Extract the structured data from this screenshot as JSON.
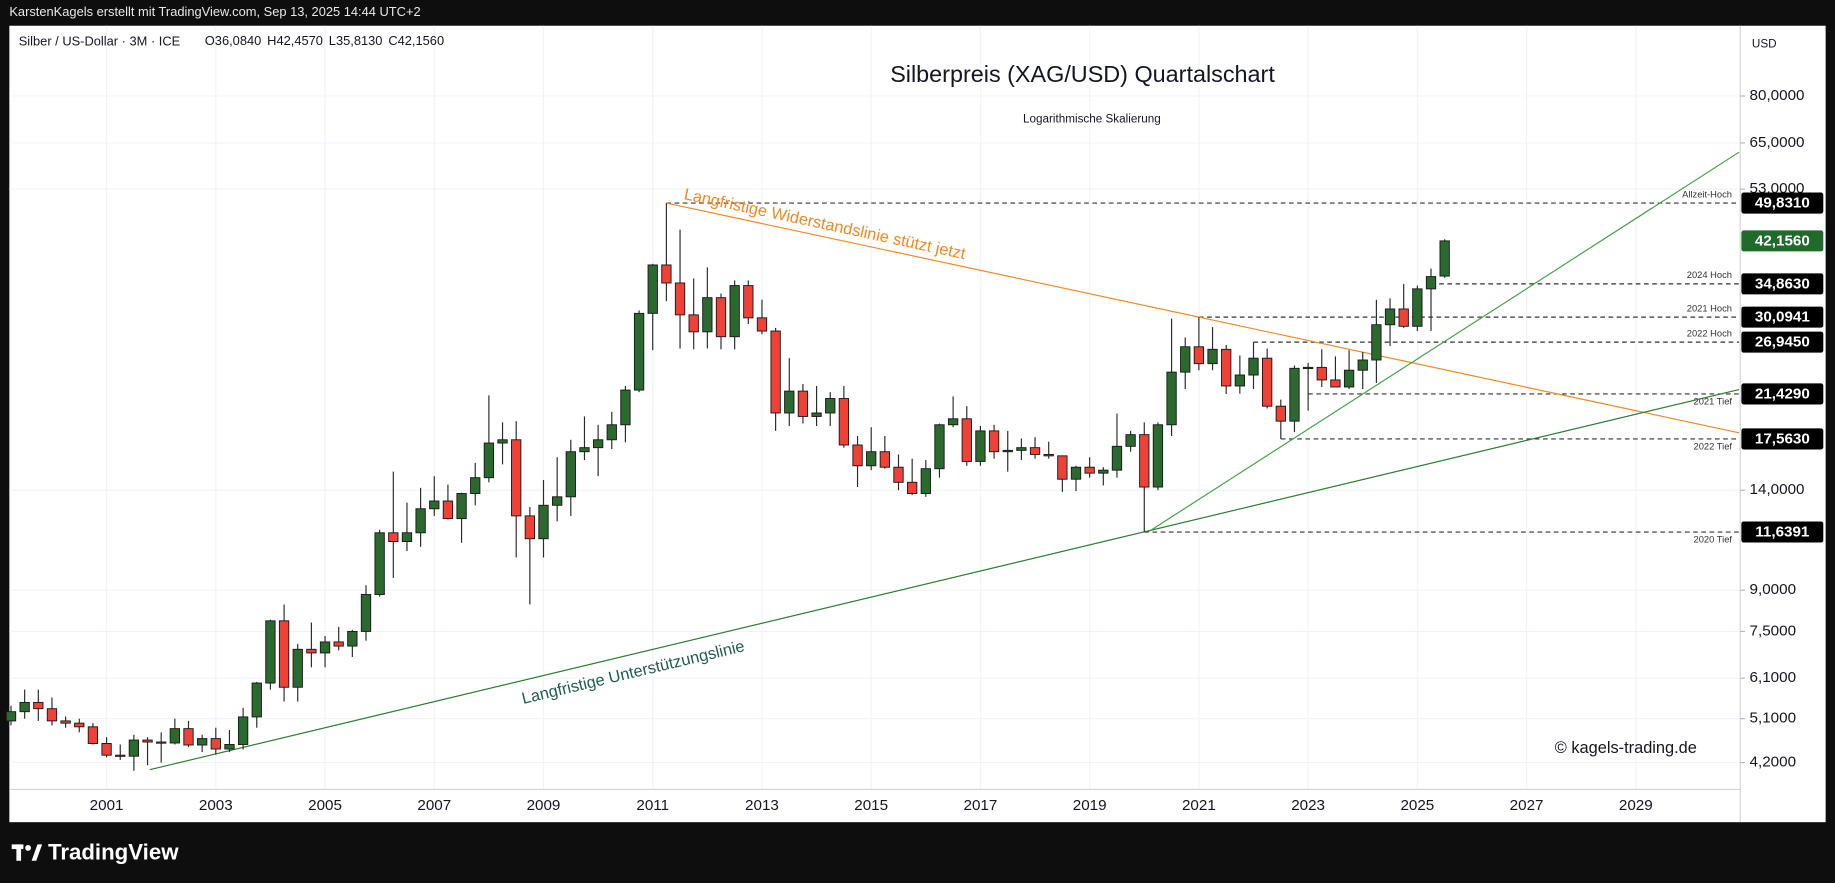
{
  "chart_data": {
    "type": "candlestick",
    "top_bar": "KarstenKagels erstellt mit TradingView.com, Sep 13, 2025 14:44 UTC+2",
    "instrument": "Silber / US-Dollar · 3M · ICE",
    "ohlc_header": [
      "O36,0840",
      "H42,4570",
      "L35,8130",
      "C42,1560"
    ],
    "title": "Silberpreis (XAG/USD) Quartalschart",
    "subtitle": "Logarithmische Skalierung",
    "y_unit": "USD",
    "watermark": "© kagels-trading.de",
    "branding": "TradingView",
    "log_scale": true,
    "grid": true,
    "up_color": "#2a6a2e",
    "down_color": "#ef4136",
    "xlim": [
      1999.22,
      2030.89
    ],
    "xticks": [
      2001,
      2003,
      2005,
      2007,
      2009,
      2011,
      2013,
      2015,
      2017,
      2019,
      2021,
      2023,
      2025,
      2027,
      2029
    ],
    "ylim": [
      3.73,
      105.8
    ],
    "yticks": [
      {
        "value": 80,
        "label": "80,0000"
      },
      {
        "value": 65,
        "label": "65,0000"
      },
      {
        "value": 53,
        "label": "53,0000"
      },
      {
        "value": 14,
        "label": "14,0000"
      },
      {
        "value": 9,
        "label": "9,0000"
      },
      {
        "value": 7.5,
        "label": "7,5000"
      },
      {
        "value": 6.1,
        "label": "6,1000"
      },
      {
        "value": 5.1,
        "label": "5,1000"
      },
      {
        "value": 4.2,
        "label": "4,2000"
      }
    ],
    "x": [
      1999.25,
      1999.5,
      1999.75,
      2000,
      2000.25,
      2000.5,
      2000.75,
      2001,
      2001.25,
      2001.5,
      2001.75,
      2002,
      2002.25,
      2002.5,
      2002.75,
      2003,
      2003.25,
      2003.5,
      2003.75,
      2004,
      2004.25,
      2004.5,
      2004.75,
      2005,
      2005.25,
      2005.5,
      2005.75,
      2006,
      2006.25,
      2006.5,
      2006.75,
      2007,
      2007.25,
      2007.5,
      2007.75,
      2008,
      2008.25,
      2008.5,
      2008.75,
      2009,
      2009.25,
      2009.5,
      2009.75,
      2010,
      2010.25,
      2010.5,
      2010.75,
      2011,
      2011.25,
      2011.5,
      2011.75,
      2012,
      2012.25,
      2012.5,
      2012.75,
      2013,
      2013.25,
      2013.5,
      2013.75,
      2014,
      2014.25,
      2014.5,
      2014.75,
      2015,
      2015.25,
      2015.5,
      2015.75,
      2016,
      2016.25,
      2016.5,
      2016.75,
      2017,
      2017.25,
      2017.5,
      2017.75,
      2018,
      2018.25,
      2018.5,
      2018.75,
      2019,
      2019.25,
      2019.5,
      2019.75,
      2020,
      2020.25,
      2020.5,
      2020.75,
      2021,
      2021.25,
      2021.5,
      2021.75,
      2022,
      2022.25,
      2022.5,
      2022.75,
      2023,
      2023.25,
      2023.5,
      2023.75,
      2024,
      2024.25,
      2024.5,
      2024.75,
      2025,
      2025.25,
      2025.5
    ],
    "open": [
      5.05,
      5.26,
      5.48,
      5.33,
      5.05,
      5.0,
      4.92,
      4.57,
      4.34,
      4.32,
      4.64,
      4.6,
      4.58,
      4.88,
      4.54,
      4.67,
      4.46,
      4.55,
      5.14,
      5.97,
      7.86,
      5.86,
      6.93,
      6.82,
      7.16,
      7.03,
      7.5,
      8.83,
      11.6,
      11.16,
      11.6,
      12.9,
      13.35,
      12.35,
      13.8,
      14.8,
      17.25,
      17.5,
      12.5,
      11.3,
      13.1,
      13.6,
      16.6,
      16.9,
      17.5,
      18.7,
      21.8,
      30.6,
      37.9,
      35.0,
      30.4,
      28.2,
      32.8,
      27.6,
      34.6,
      30.0,
      28.3,
      19.7,
      21.7,
      19.4,
      19.7,
      21.0,
      17.1,
      15.6,
      16.6,
      15.5,
      14.5,
      13.8,
      15.4,
      18.7,
      19.2,
      15.9,
      18.2,
      16.6,
      16.7,
      16.9,
      16.4,
      16.3,
      14.7,
      15.5,
      15.1,
      15.3,
      17.0,
      17.9,
      14.2,
      18.7,
      23.6,
      26.4,
      24.5,
      26.1,
      22.2,
      23.3,
      25.1,
      20.3,
      19.0,
      24.0,
      24.1,
      22.8,
      22.1,
      23.8,
      24.9,
      29.1,
      31.2,
      28.9,
      34.1,
      36.084
    ],
    "high": [
      5.4,
      5.8,
      5.8,
      5.6,
      5.15,
      5.1,
      5.0,
      4.7,
      4.55,
      4.75,
      4.7,
      4.8,
      5.1,
      5.05,
      4.75,
      4.9,
      4.85,
      5.35,
      6.0,
      7.9,
      8.45,
      7.1,
      7.8,
      7.35,
      7.65,
      7.55,
      9.2,
      11.75,
      15.2,
      13.25,
      14.15,
      14.9,
      14.35,
      13.85,
      15.8,
      21.3,
      18.9,
      19.0,
      13.0,
      14.65,
      16.2,
      17.5,
      19.4,
      18.7,
      19.8,
      22.2,
      31.0,
      38.1,
      49.831,
      44.3,
      35.7,
      37.5,
      33.4,
      35.4,
      35.4,
      32.5,
      28.7,
      25.1,
      22.4,
      22.2,
      21.6,
      22.2,
      17.8,
      18.5,
      17.8,
      16.4,
      16.1,
      16.0,
      18.8,
      21.2,
      20.3,
      18.6,
      18.7,
      18.2,
      17.6,
      17.7,
      17.35,
      16.3,
      15.6,
      16.2,
      15.5,
      19.65,
      18.2,
      18.9,
      18.9,
      29.9,
      27.5,
      30.0941,
      28.8,
      26.6,
      25.4,
      26.945,
      26.2,
      20.9,
      24.3,
      24.6,
      26.1,
      25.3,
      26.0,
      25.8,
      32.5,
      32.7,
      34.863,
      34.6,
      37.3,
      42.457
    ],
    "low": [
      4.95,
      5.1,
      5.05,
      4.95,
      4.9,
      4.8,
      4.55,
      4.3,
      4.25,
      4.05,
      4.15,
      4.2,
      4.55,
      4.5,
      4.4,
      4.35,
      4.4,
      4.45,
      4.9,
      5.8,
      5.5,
      5.5,
      6.4,
      6.4,
      6.9,
      6.7,
      7.2,
      8.75,
      9.5,
      10.7,
      10.9,
      12.5,
      12.3,
      11.1,
      13.1,
      14.5,
      15.7,
      10.4,
      8.45,
      10.4,
      12.2,
      12.5,
      16.0,
      14.9,
      16.8,
      17.3,
      21.6,
      26.0,
      32.3,
      26.2,
      26.1,
      26.2,
      26.1,
      26.1,
      29.2,
      27.9,
      18.2,
      18.6,
      18.8,
      18.6,
      18.6,
      16.9,
      14.2,
      15.3,
      15.4,
      14.0,
      13.7,
      13.6,
      14.8,
      18.5,
      15.6,
      15.6,
      16.1,
      15.2,
      16.0,
      16.1,
      16.1,
      13.9,
      13.95,
      14.8,
      14.3,
      14.8,
      16.6,
      11.6391,
      14.0,
      17.8,
      21.9,
      23.8,
      23.8,
      21.429,
      21.45,
      21.9,
      20.1,
      17.563,
      18.1,
      19.9,
      22.1,
      22.1,
      21.9,
      21.9,
      22.5,
      26.5,
      28.7,
      28.3,
      28.3,
      35.813
    ],
    "close": [
      5.26,
      5.48,
      5.33,
      5.05,
      5.0,
      4.92,
      4.57,
      4.34,
      4.32,
      4.64,
      4.6,
      4.58,
      4.88,
      4.54,
      4.67,
      4.46,
      4.55,
      5.14,
      5.97,
      7.86,
      5.86,
      6.93,
      6.82,
      7.16,
      7.03,
      7.5,
      8.83,
      11.6,
      11.16,
      11.6,
      12.9,
      13.35,
      12.35,
      13.8,
      14.8,
      17.25,
      17.5,
      12.5,
      11.3,
      13.1,
      13.6,
      16.6,
      16.9,
      17.5,
      18.7,
      21.8,
      30.6,
      37.9,
      35.0,
      30.4,
      28.2,
      32.8,
      27.6,
      34.6,
      30.0,
      28.3,
      19.7,
      21.7,
      19.4,
      19.7,
      21.0,
      17.1,
      15.6,
      16.6,
      15.5,
      14.5,
      13.8,
      15.4,
      18.7,
      19.2,
      15.9,
      18.2,
      16.6,
      16.7,
      16.9,
      16.4,
      16.3,
      14.7,
      15.5,
      15.1,
      15.3,
      17.0,
      17.9,
      14.2,
      18.7,
      23.6,
      26.4,
      24.5,
      26.1,
      22.2,
      23.3,
      25.1,
      20.3,
      19.0,
      24.0,
      24.1,
      22.8,
      22.1,
      23.8,
      24.9,
      29.1,
      31.2,
      28.9,
      34.1,
      36.0,
      42.156
    ],
    "last_price": {
      "value": 42.156,
      "label": "42,1560",
      "color": "#1e6b2a"
    },
    "levels": [
      {
        "label": "Allzeit-Hoch",
        "value": 49.831,
        "value_label": "49,8310",
        "from": 2011.25
      },
      {
        "label": "2024 Hoch",
        "value": 34.863,
        "value_label": "34,8630",
        "from": 2025.25
      },
      {
        "label": "2021 Hoch",
        "value": 30.0941,
        "value_label": "30,0941",
        "from": 2021.0
      },
      {
        "label": "2022 Hoch",
        "value": 26.945,
        "value_label": "26,9450",
        "from": 2022.0
      },
      {
        "label": "2021 Tief",
        "value": 21.429,
        "value_label": "21,4290",
        "from": 2023.0
      },
      {
        "label": "2022 Tief",
        "value": 17.563,
        "value_label": "17,5630",
        "from": 2022.5
      },
      {
        "label": "2020 Tief",
        "value": 11.6391,
        "value_label": "11,6391",
        "from": 2020.0
      }
    ],
    "trendlines": [
      {
        "label": "Langfristige Widerstandslinie stützt jetzt",
        "color": "#f5871f",
        "x": [
          2011.25,
          2030.89
        ],
        "y": [
          49.831,
          18.05
        ]
      },
      {
        "label": "Langfristige Unterstützungslinie",
        "color": "#2e7d32",
        "x": [
          2001.79,
          2030.89
        ],
        "y": [
          4.07,
          21.85
        ]
      },
      {
        "color": "#43a047",
        "x": [
          2020.07,
          2030.89
        ],
        "y": [
          11.6391,
          62.4
        ]
      }
    ]
  }
}
